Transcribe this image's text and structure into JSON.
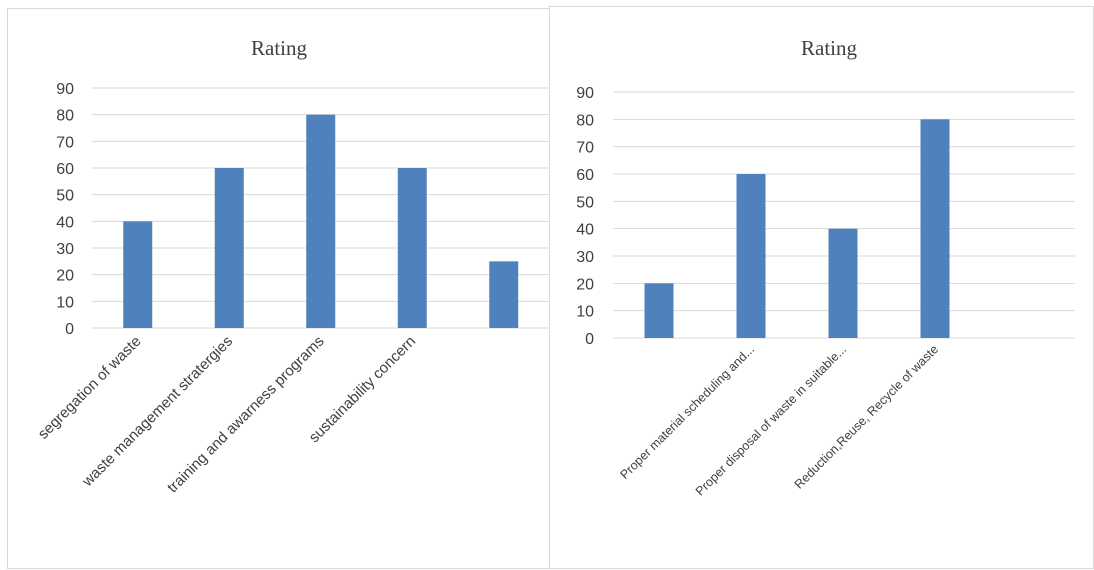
{
  "chart_data": [
    {
      "type": "bar",
      "title": "Rating",
      "xlabel": "",
      "ylabel": "",
      "ylim": [
        0,
        90
      ],
      "yticks": [
        0,
        10,
        20,
        30,
        40,
        50,
        60,
        70,
        80,
        90
      ],
      "categories": [
        "segregation of waste",
        "waste management stratergies",
        "training and awarness programs",
        "sustainability concern",
        ""
      ],
      "series": [
        {
          "values": [
            40,
            60,
            80,
            60,
            25
          ]
        }
      ],
      "grid": true,
      "legend": "none",
      "bar_color": "#4f81bd"
    },
    {
      "type": "bar",
      "title": "Rating",
      "xlabel": "",
      "ylabel": "",
      "ylim": [
        0,
        90
      ],
      "yticks": [
        0,
        10,
        20,
        30,
        40,
        50,
        60,
        70,
        80,
        90
      ],
      "categories": [
        "",
        "Proper material scheduling and...",
        "Proper disposal of waste in suitable...",
        "Reduction,Reuse, Recycle of waste",
        ""
      ],
      "series": [
        {
          "values": [
            20,
            60,
            40,
            80,
            null
          ]
        }
      ],
      "grid": true,
      "legend": "none",
      "bar_color": "#4f81bd"
    }
  ]
}
